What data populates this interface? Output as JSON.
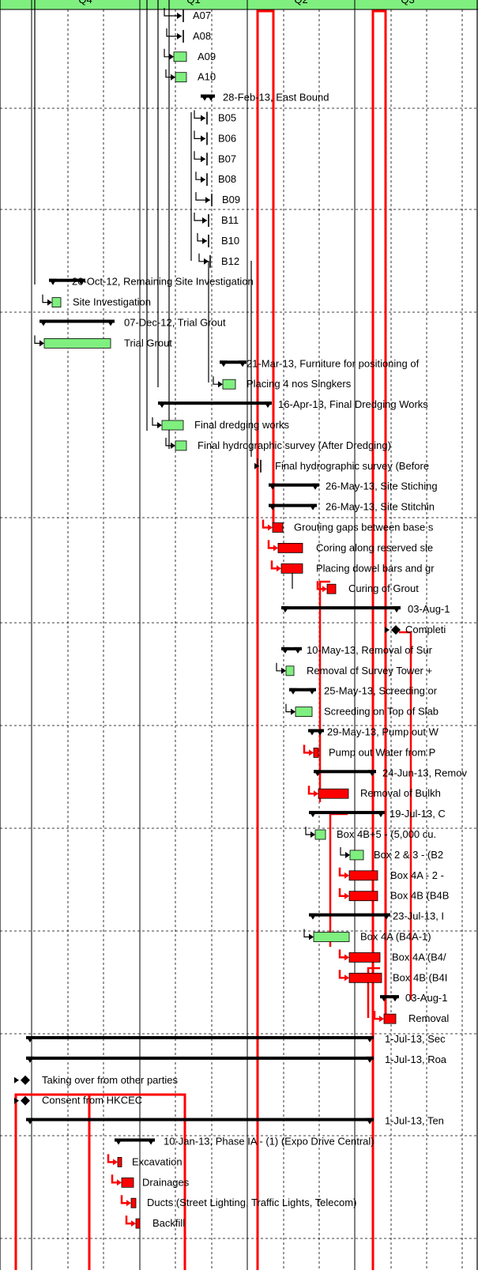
{
  "chart_data": {
    "type": "gantt",
    "header": [
      "Q4",
      "Q1",
      "Q2",
      "Q3"
    ],
    "rows": [
      {
        "label": "A07",
        "kind": "milestone-arrow"
      },
      {
        "label": "A08",
        "kind": "milestone-arrow"
      },
      {
        "label": "A09",
        "kind": "task",
        "color": "green"
      },
      {
        "label": "A10",
        "kind": "task",
        "color": "green"
      },
      {
        "label": "28-Feb-13, East Bound",
        "kind": "summary"
      },
      {
        "label": "B05",
        "kind": "milestone-arrow"
      },
      {
        "label": "B06",
        "kind": "milestone-arrow"
      },
      {
        "label": "B07",
        "kind": "milestone-arrow"
      },
      {
        "label": "B08",
        "kind": "milestone-arrow"
      },
      {
        "label": "B09",
        "kind": "milestone-arrow"
      },
      {
        "label": "B11",
        "kind": "milestone-arrow"
      },
      {
        "label": "B10",
        "kind": "milestone-arrow"
      },
      {
        "label": "B12",
        "kind": "milestone-arrow"
      },
      {
        "label": "26-Oct-12, Remaining Site Investigation",
        "kind": "summary"
      },
      {
        "label": "Site Investigation",
        "kind": "task",
        "color": "green"
      },
      {
        "label": "07-Dec-12, Trial Grout",
        "kind": "summary"
      },
      {
        "label": "Trial Grout",
        "kind": "task",
        "color": "green"
      },
      {
        "label": "21-Mar-13, Furniture for positioning of",
        "kind": "summary"
      },
      {
        "label": "Placing 4 nos Singkers",
        "kind": "task",
        "color": "green"
      },
      {
        "label": "16-Apr-13, Final Dredging Works",
        "kind": "summary"
      },
      {
        "label": "Final dredging works",
        "kind": "task",
        "color": "green"
      },
      {
        "label": "Final hydrographic survey (After Dredging)",
        "kind": "task",
        "color": "green"
      },
      {
        "label": "Final hydrographic survey (Before",
        "kind": "milestone-arrow"
      },
      {
        "label": "26-May-13, Site Stiching",
        "kind": "summary"
      },
      {
        "label": "26-May-13, Site Stitchin",
        "kind": "summary"
      },
      {
        "label": "Grouting gaps between base s",
        "kind": "task",
        "color": "red"
      },
      {
        "label": "Coring along reserved sle",
        "kind": "task",
        "color": "red"
      },
      {
        "label": "Placing dowel bars and gr",
        "kind": "task",
        "color": "red"
      },
      {
        "label": "Curing of Grout",
        "kind": "task",
        "color": "red"
      },
      {
        "label": "03-Aug-1",
        "kind": "summary"
      },
      {
        "label": "Completi",
        "kind": "milestone"
      },
      {
        "label": "10-May-13, Removal of Sur",
        "kind": "summary"
      },
      {
        "label": "Removal of Survey Tower +",
        "kind": "task",
        "color": "green"
      },
      {
        "label": "25-May-13, Screeding or",
        "kind": "summary"
      },
      {
        "label": "Screeding on Top of Slab",
        "kind": "task",
        "color": "green"
      },
      {
        "label": "29-May-13, Pump out W",
        "kind": "summary"
      },
      {
        "label": "Pump out Water from P",
        "kind": "task",
        "color": "red"
      },
      {
        "label": "24-Jun-13, Remov",
        "kind": "summary"
      },
      {
        "label": "Removal of Bulkh",
        "kind": "task",
        "color": "red"
      },
      {
        "label": "19-Jul-13, C",
        "kind": "summary"
      },
      {
        "label": "Box 4B+5 - (5,000 cu.",
        "kind": "task",
        "color": "green"
      },
      {
        "label": "Box 2 & 3 - (B2",
        "kind": "task",
        "color": "green"
      },
      {
        "label": "Box 4A - 2 -",
        "kind": "task",
        "color": "red"
      },
      {
        "label": "Box 4B (B4B",
        "kind": "task",
        "color": "red"
      },
      {
        "label": "23-Jul-13, I",
        "kind": "summary"
      },
      {
        "label": "Box 4A  (B4A-1)",
        "kind": "task",
        "color": "green"
      },
      {
        "label": "Box 4A (B4/",
        "kind": "task",
        "color": "red"
      },
      {
        "label": "Box 4B (B4I",
        "kind": "task",
        "color": "red"
      },
      {
        "label": "03-Aug-1",
        "kind": "summary"
      },
      {
        "label": "Removal",
        "kind": "task",
        "color": "red"
      },
      {
        "label": "1-Jul-13, Sec",
        "kind": "summary"
      },
      {
        "label": "1-Jul-13, Roa",
        "kind": "summary"
      },
      {
        "label": "Taking over from other parties",
        "kind": "milestone"
      },
      {
        "label": "Consent from HKCEC",
        "kind": "milestone"
      },
      {
        "label": "1-Jul-13, Ten",
        "kind": "summary"
      },
      {
        "label": "10-Jan-13, Phase IA - (1) (Expo Drive Central)",
        "kind": "summary"
      },
      {
        "label": "Excavation",
        "kind": "task",
        "color": "red"
      },
      {
        "label": "Drainages",
        "kind": "task",
        "color": "red"
      },
      {
        "label": "Ducts (Street Lighting, Traffic Lights, Telecom)",
        "kind": "task",
        "color": "red"
      },
      {
        "label": "Backfill",
        "kind": "task",
        "color": "red"
      }
    ],
    "colors": {
      "critical": "#ff0000",
      "normal": "#7fef7f",
      "summary": "#000000",
      "header": "#7fef7f",
      "grid": "#000000"
    }
  }
}
